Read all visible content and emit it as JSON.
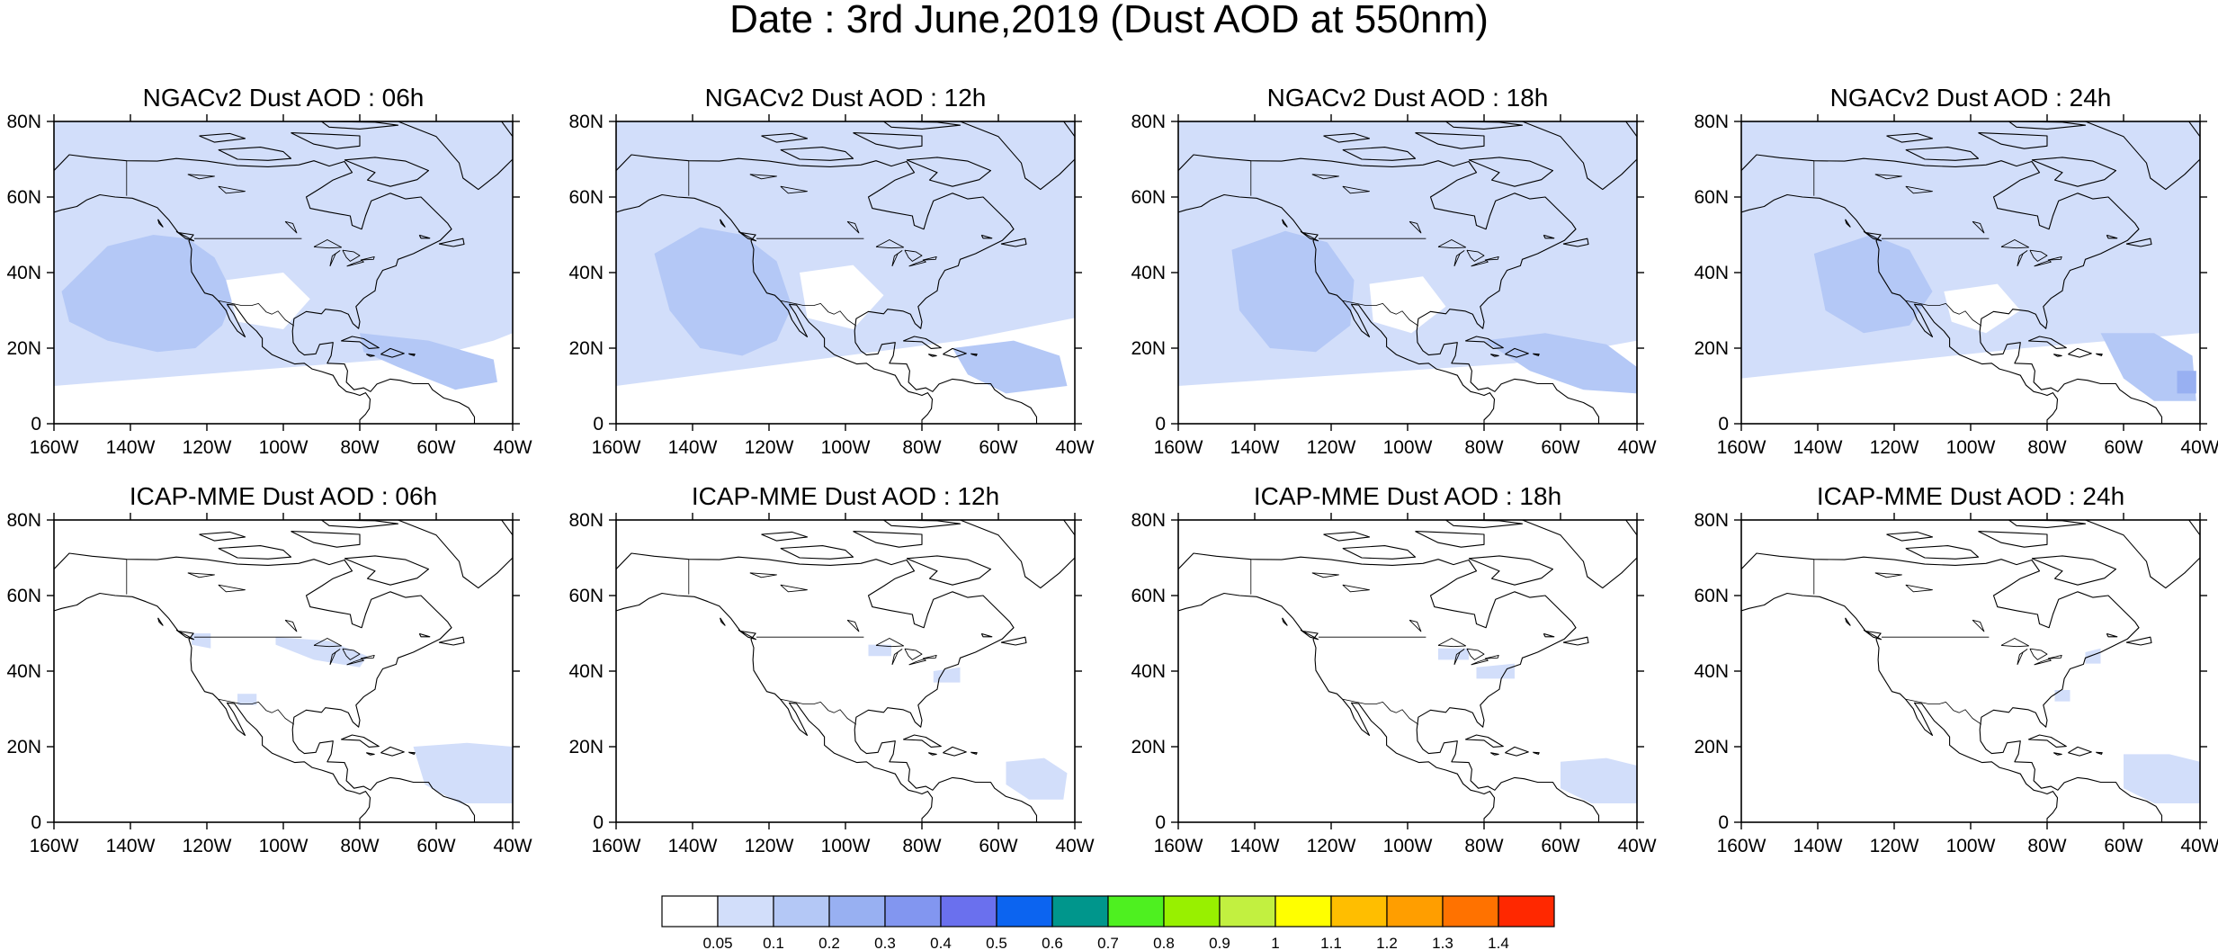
{
  "title": "Date : 3rd June,2019 (Dust AOD at 550nm)",
  "map": {
    "lon_range": [
      -160,
      -40
    ],
    "lat_range": [
      0,
      80
    ],
    "projection": "cylindrical equidistant",
    "x_ticks": [
      "160W",
      "140W",
      "120W",
      "100W",
      "80W",
      "60W",
      "40W"
    ],
    "y_ticks": [
      "0",
      "20N",
      "40N",
      "60N",
      "80N"
    ]
  },
  "panels": [
    {
      "title": "NGACv2 Dust AOD : 06h"
    },
    {
      "title": "NGACv2 Dust AOD : 12h"
    },
    {
      "title": "NGACv2 Dust AOD : 18h"
    },
    {
      "title": "NGACv2 Dust AOD : 24h"
    },
    {
      "title": "ICAP-MME Dust AOD : 06h"
    },
    {
      "title": "ICAP-MME Dust AOD : 12h"
    },
    {
      "title": "ICAP-MME Dust AOD : 18h"
    },
    {
      "title": "ICAP-MME Dust AOD : 24h"
    }
  ],
  "colorbar": {
    "levels": [
      "0.05",
      "0.1",
      "0.2",
      "0.3",
      "0.4",
      "0.5",
      "0.6",
      "0.7",
      "0.8",
      "0.9",
      "1",
      "1.1",
      "1.2",
      "1.3",
      "1.4"
    ],
    "colors": [
      "#ffffff",
      "#d2defa",
      "#b4c8f6",
      "#98b0f2",
      "#8296f0",
      "#6a70ee",
      "#0c64f0",
      "#00968c",
      "#4ef020",
      "#98f000",
      "#c2f040",
      "#ffff00",
      "#ffbe00",
      "#ff9e00",
      "#ff7200",
      "#ff2800"
    ]
  }
}
